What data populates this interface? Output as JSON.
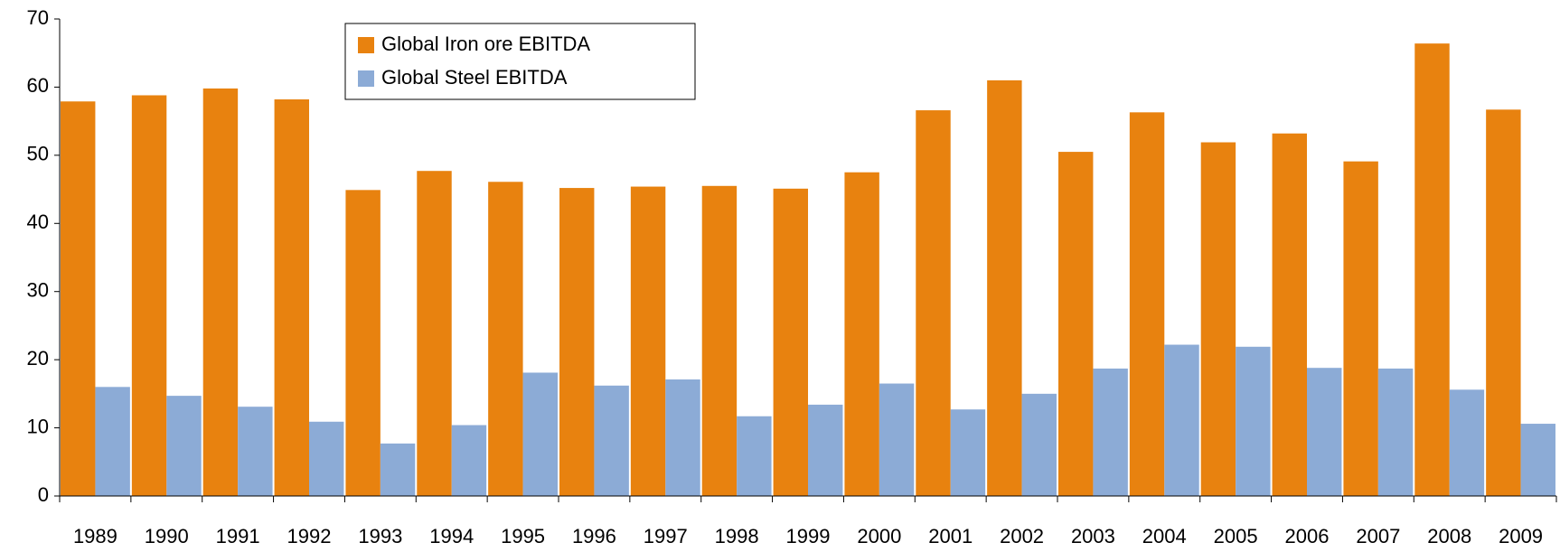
{
  "chart_data": {
    "type": "bar",
    "categories": [
      "1989",
      "1990",
      "1991",
      "1992",
      "1993",
      "1994",
      "1995",
      "1996",
      "1997",
      "1998",
      "1999",
      "2000",
      "2001",
      "2002",
      "2003",
      "2004",
      "2005",
      "2006",
      "2007",
      "2008",
      "2009"
    ],
    "series": [
      {
        "name": "Global Iron ore EBITDA",
        "color": "#e8820f",
        "values": [
          57.9,
          58.8,
          59.8,
          58.2,
          44.9,
          47.7,
          46.1,
          45.2,
          45.4,
          45.5,
          45.1,
          47.5,
          56.6,
          61.0,
          50.5,
          56.3,
          51.9,
          53.2,
          49.1,
          66.4,
          56.7
        ]
      },
      {
        "name": "Global Steel EBITDA",
        "color": "#8cabd6",
        "values": [
          16.0,
          14.7,
          13.1,
          10.9,
          7.7,
          10.4,
          18.1,
          16.2,
          17.1,
          11.7,
          13.4,
          16.5,
          12.7,
          15.0,
          18.7,
          22.2,
          21.9,
          18.8,
          18.7,
          15.6,
          10.6
        ]
      }
    ],
    "ylim": [
      0,
      70
    ],
    "yticks": [
      0,
      10,
      20,
      30,
      40,
      50,
      60,
      70
    ],
    "legend": "top-center"
  }
}
